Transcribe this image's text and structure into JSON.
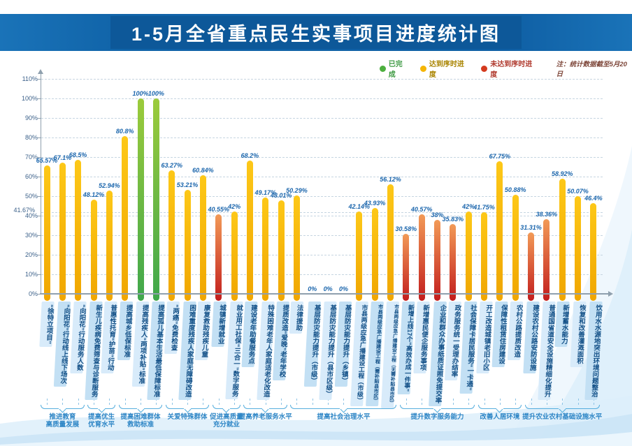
{
  "title": "1-5月全省重点民生实事项目进度统计图",
  "legend": {
    "items": [
      {
        "label": "已完成",
        "color": "#4caf3e",
        "text_color": "#3f9a44"
      },
      {
        "label": "达到序时进度",
        "color": "#f5b504",
        "text_color": "#a98400"
      },
      {
        "label": "未达到序时进度",
        "color": "#d43a1e",
        "text_color": "#b03a2e"
      }
    ],
    "note": "注：统计数据截至5月20日"
  },
  "y_axis": {
    "tick_labels": [
      "0%",
      "10%",
      "20%",
      "30%",
      "40%",
      "50%",
      "60%",
      "70%",
      "80%",
      "90%",
      "100%",
      "110%"
    ],
    "tick_values": [
      0,
      10,
      20,
      30,
      40,
      50,
      60,
      70,
      80,
      90,
      100,
      110
    ],
    "reference_label": "41.67%",
    "reference_value": 41.67
  },
  "status_colors": {
    "done": {
      "top": "#9ccb3b",
      "bottom": "#3fa74c"
    },
    "on_schedule": {
      "top": "#fdc818",
      "bottom": "#f0a600"
    },
    "behind": {
      "top": "#f29a57",
      "bottom": "#c21d1d"
    }
  },
  "chart_data": {
    "type": "bar",
    "title": "1-5月全省重点民生实事项目进度统计图",
    "ylim": [
      0,
      110
    ],
    "reference_line": 41.67,
    "grid": "dashed horizontal",
    "legend_position": "top-right",
    "categories": [
      "“徐特立项目”",
      "“向阳花”行动线上线下场次",
      "“向阳花”行动服务人数",
      "新生儿疾病免费筛查与诊断服务",
      "普惠性托育“护苗”行动",
      "提高城乡低保标准",
      "提高残疾人“两项补贴”标准",
      "提高孤儿基本生活最低保障标准",
      "“两癌”免费检查",
      "困难重度残疾人家庭无障碍改造",
      "康复救助残疾儿童",
      "城镇新增就业",
      "就业用工社保“三合一”数字服务",
      "建设老年助餐服务点",
      "特殊困难老年人家庭适老化改造",
      "提质改造“爱晚”老年学校",
      "法律援助",
      "基层防灾能力提升（市级）",
      "基层防灾能力提升（县市区级）",
      "基层防灾能力提升（乡镇）",
      "市县两级应急广播建设工程（市级）",
      "市县两级应急广播建设工程（需补贴县市区）",
      "市县两级应急广播建设工程（无需补贴县市区）",
      "新增上线17个“高效办成一件事”",
      "新增惠民便企服务事项",
      "企业和群众办事纸质证照免提交率",
      "政务服务统一受理办结率",
      "社会保障卡居民服务“一卡通”",
      "开工改造城镇老旧小区",
      "保障性租赁住房建设",
      "农村公路提质改造",
      "建设农村公路安防设施",
      "普通国省道安全设施精细化提升",
      "新增蓄水能力",
      "恢复和改善灌溉面积",
      "饮用水水源地突出环境问题整治"
    ],
    "values": [
      65.57,
      67.1,
      68.5,
      48.12,
      52.94,
      80.8,
      100,
      100,
      63.27,
      53.21,
      60.84,
      40.55,
      42,
      68.2,
      49.17,
      48.01,
      50.29,
      0,
      0,
      0,
      42.14,
      43.93,
      56.12,
      30.58,
      40.57,
      38,
      35.83,
      42,
      41.75,
      67.75,
      50.88,
      31.31,
      38.36,
      58.92,
      50.07,
      46.4
    ],
    "value_labels": [
      "65.57%",
      "67.1%",
      "68.5%",
      "48.12%",
      "52.94%",
      "80.8%",
      "100%",
      "100%",
      "63.27%",
      "53.21%",
      "60.84%",
      "40.55%",
      "42%",
      "68.2%",
      "49.17%",
      "48.01%",
      "50.29%",
      "0%",
      "0%",
      "0%",
      "42.14%",
      "43.93%",
      "56.12%",
      "30.58%",
      "40.57%",
      "38%",
      "35.83%",
      "42%",
      "41.75%",
      "67.75%",
      "50.88%",
      "31.31%",
      "38.36%",
      "58.92%",
      "50.07%",
      "46.4%"
    ],
    "statuses": [
      "on_schedule",
      "on_schedule",
      "on_schedule",
      "on_schedule",
      "on_schedule",
      "on_schedule",
      "done",
      "done",
      "on_schedule",
      "on_schedule",
      "on_schedule",
      "behind",
      "on_schedule",
      "on_schedule",
      "on_schedule",
      "on_schedule",
      "on_schedule",
      "zero",
      "zero",
      "zero",
      "on_schedule",
      "on_schedule",
      "on_schedule",
      "behind",
      "behind",
      "behind",
      "behind",
      "on_schedule",
      "on_schedule",
      "on_schedule",
      "on_schedule",
      "behind",
      "behind",
      "on_schedule",
      "on_schedule",
      "on_schedule"
    ],
    "groups": [
      {
        "label": "推进教育\n高质量发展",
        "start": 0,
        "end": 2
      },
      {
        "label": "提高优生\n优育水平",
        "start": 3,
        "end": 4
      },
      {
        "label": "提高困难群体\n救助标准",
        "start": 5,
        "end": 7
      },
      {
        "label": "关爱特殊群体",
        "start": 8,
        "end": 10
      },
      {
        "label": "促进高质量\n充分就业",
        "start": 11,
        "end": 12
      },
      {
        "label": "提高养老服务水平",
        "start": 13,
        "end": 15
      },
      {
        "label": "提高社会治理水平",
        "start": 16,
        "end": 22
      },
      {
        "label": "提升数字服务能力",
        "start": 23,
        "end": 27
      },
      {
        "label": "改善人居环境",
        "start": 28,
        "end": 30
      },
      {
        "label": "提升农业农村基础设施水平",
        "start": 31,
        "end": 35
      }
    ]
  }
}
